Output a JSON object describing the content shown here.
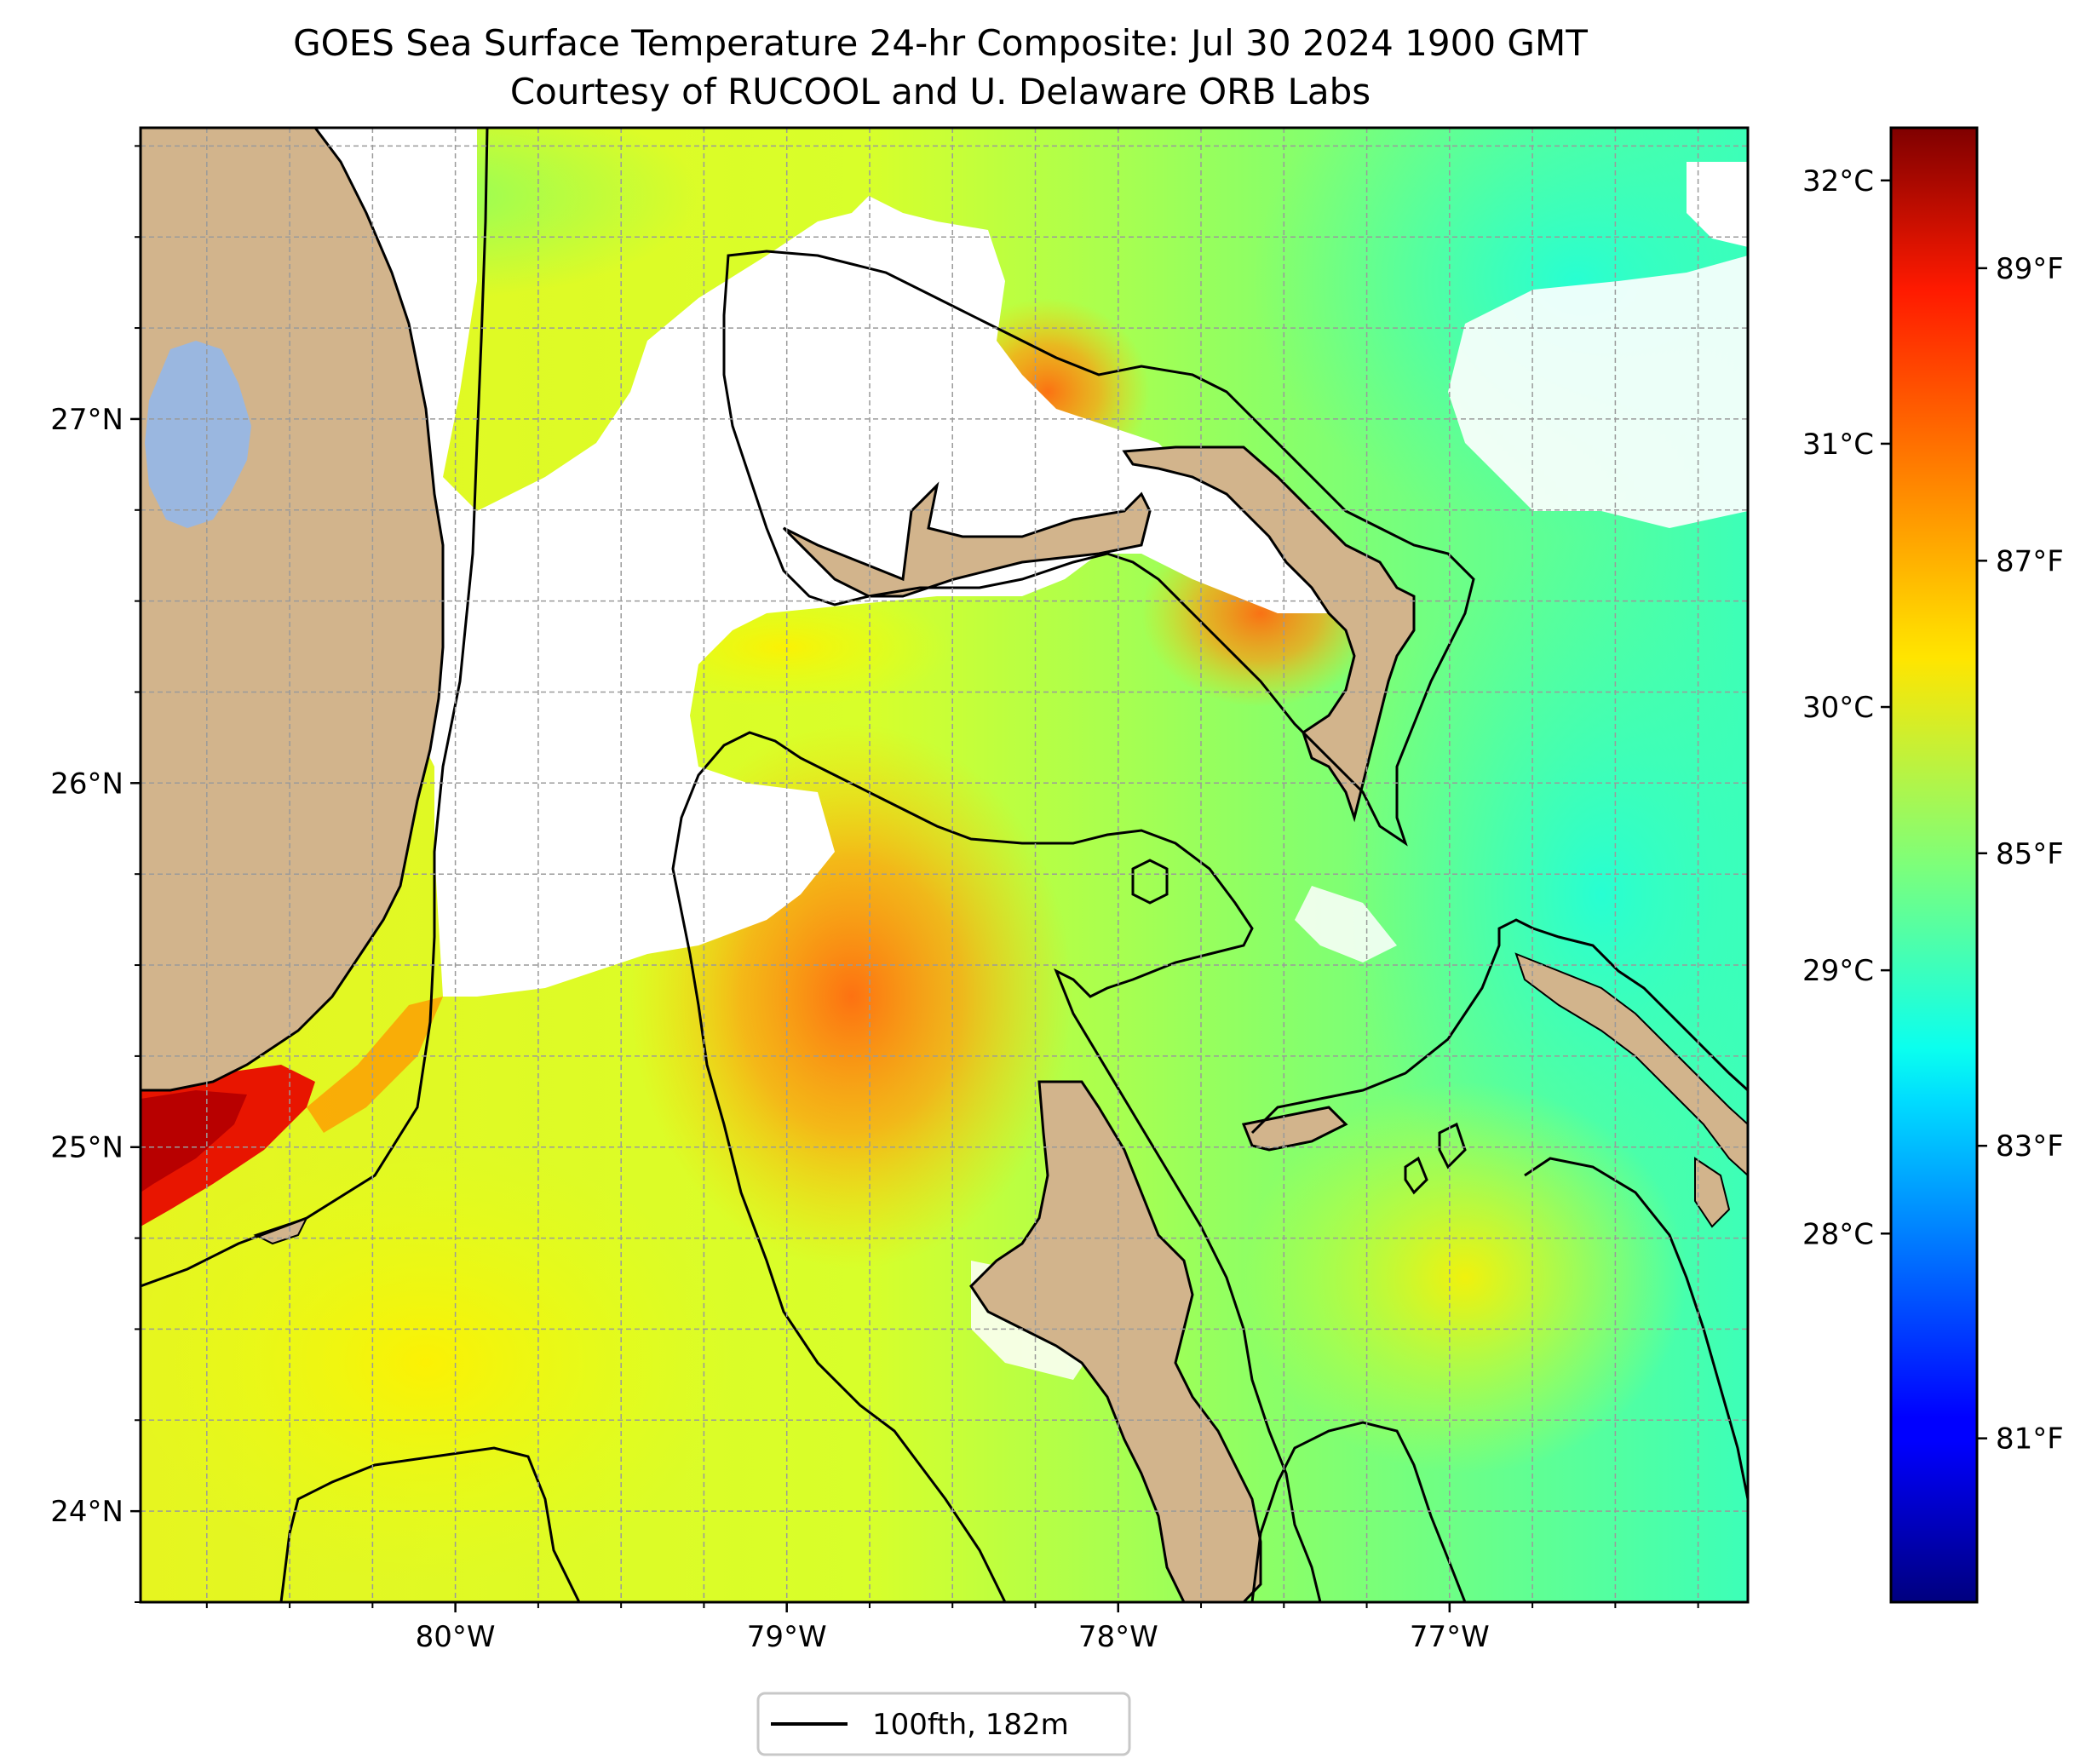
{
  "figure": {
    "title_line1": "GOES Sea Surface Temperature 24-hr Composite: Jul 30 2024 1900 GMT",
    "title_line2": "Courtesy of RUCOOL and U. Delaware ORB Labs"
  },
  "map": {
    "extent": {
      "lon_min": -80.95,
      "lon_max": -76.1,
      "lat_min": 23.75,
      "lat_max": 27.8
    },
    "lat_ticks": [
      {
        "value": 27,
        "label": "27°N"
      },
      {
        "value": 26,
        "label": "26°N"
      },
      {
        "value": 25,
        "label": "25°N"
      },
      {
        "value": 24,
        "label": "24°N"
      }
    ],
    "lon_ticks": [
      {
        "value": -80,
        "label": "80°W"
      },
      {
        "value": -79,
        "label": "79°W"
      },
      {
        "value": -78,
        "label": "78°W"
      },
      {
        "value": -77,
        "label": "77°W"
      }
    ],
    "colors": {
      "land": "#d2b48c",
      "lake": "#9ab7e0",
      "cloud": "#ffffff",
      "grid": "#9a9a9a",
      "contour": "#000000"
    }
  },
  "colorbar": {
    "scale": "jet",
    "range_c": [
      26.6,
      32.2
    ],
    "celsius_ticks": [
      {
        "value": 32,
        "label": "32°C"
      },
      {
        "value": 31,
        "label": "31°C"
      },
      {
        "value": 30,
        "label": "30°C"
      },
      {
        "value": 29,
        "label": "29°C"
      },
      {
        "value": 28,
        "label": "28°C"
      }
    ],
    "fahrenheit_ticks": [
      {
        "value": 89,
        "label": "89°F"
      },
      {
        "value": 87,
        "label": "87°F"
      },
      {
        "value": 85,
        "label": "85°F"
      },
      {
        "value": 83,
        "label": "83°F"
      },
      {
        "value": 81,
        "label": "81°F"
      }
    ]
  },
  "legend": {
    "entry_label": "100fth, 182m"
  }
}
